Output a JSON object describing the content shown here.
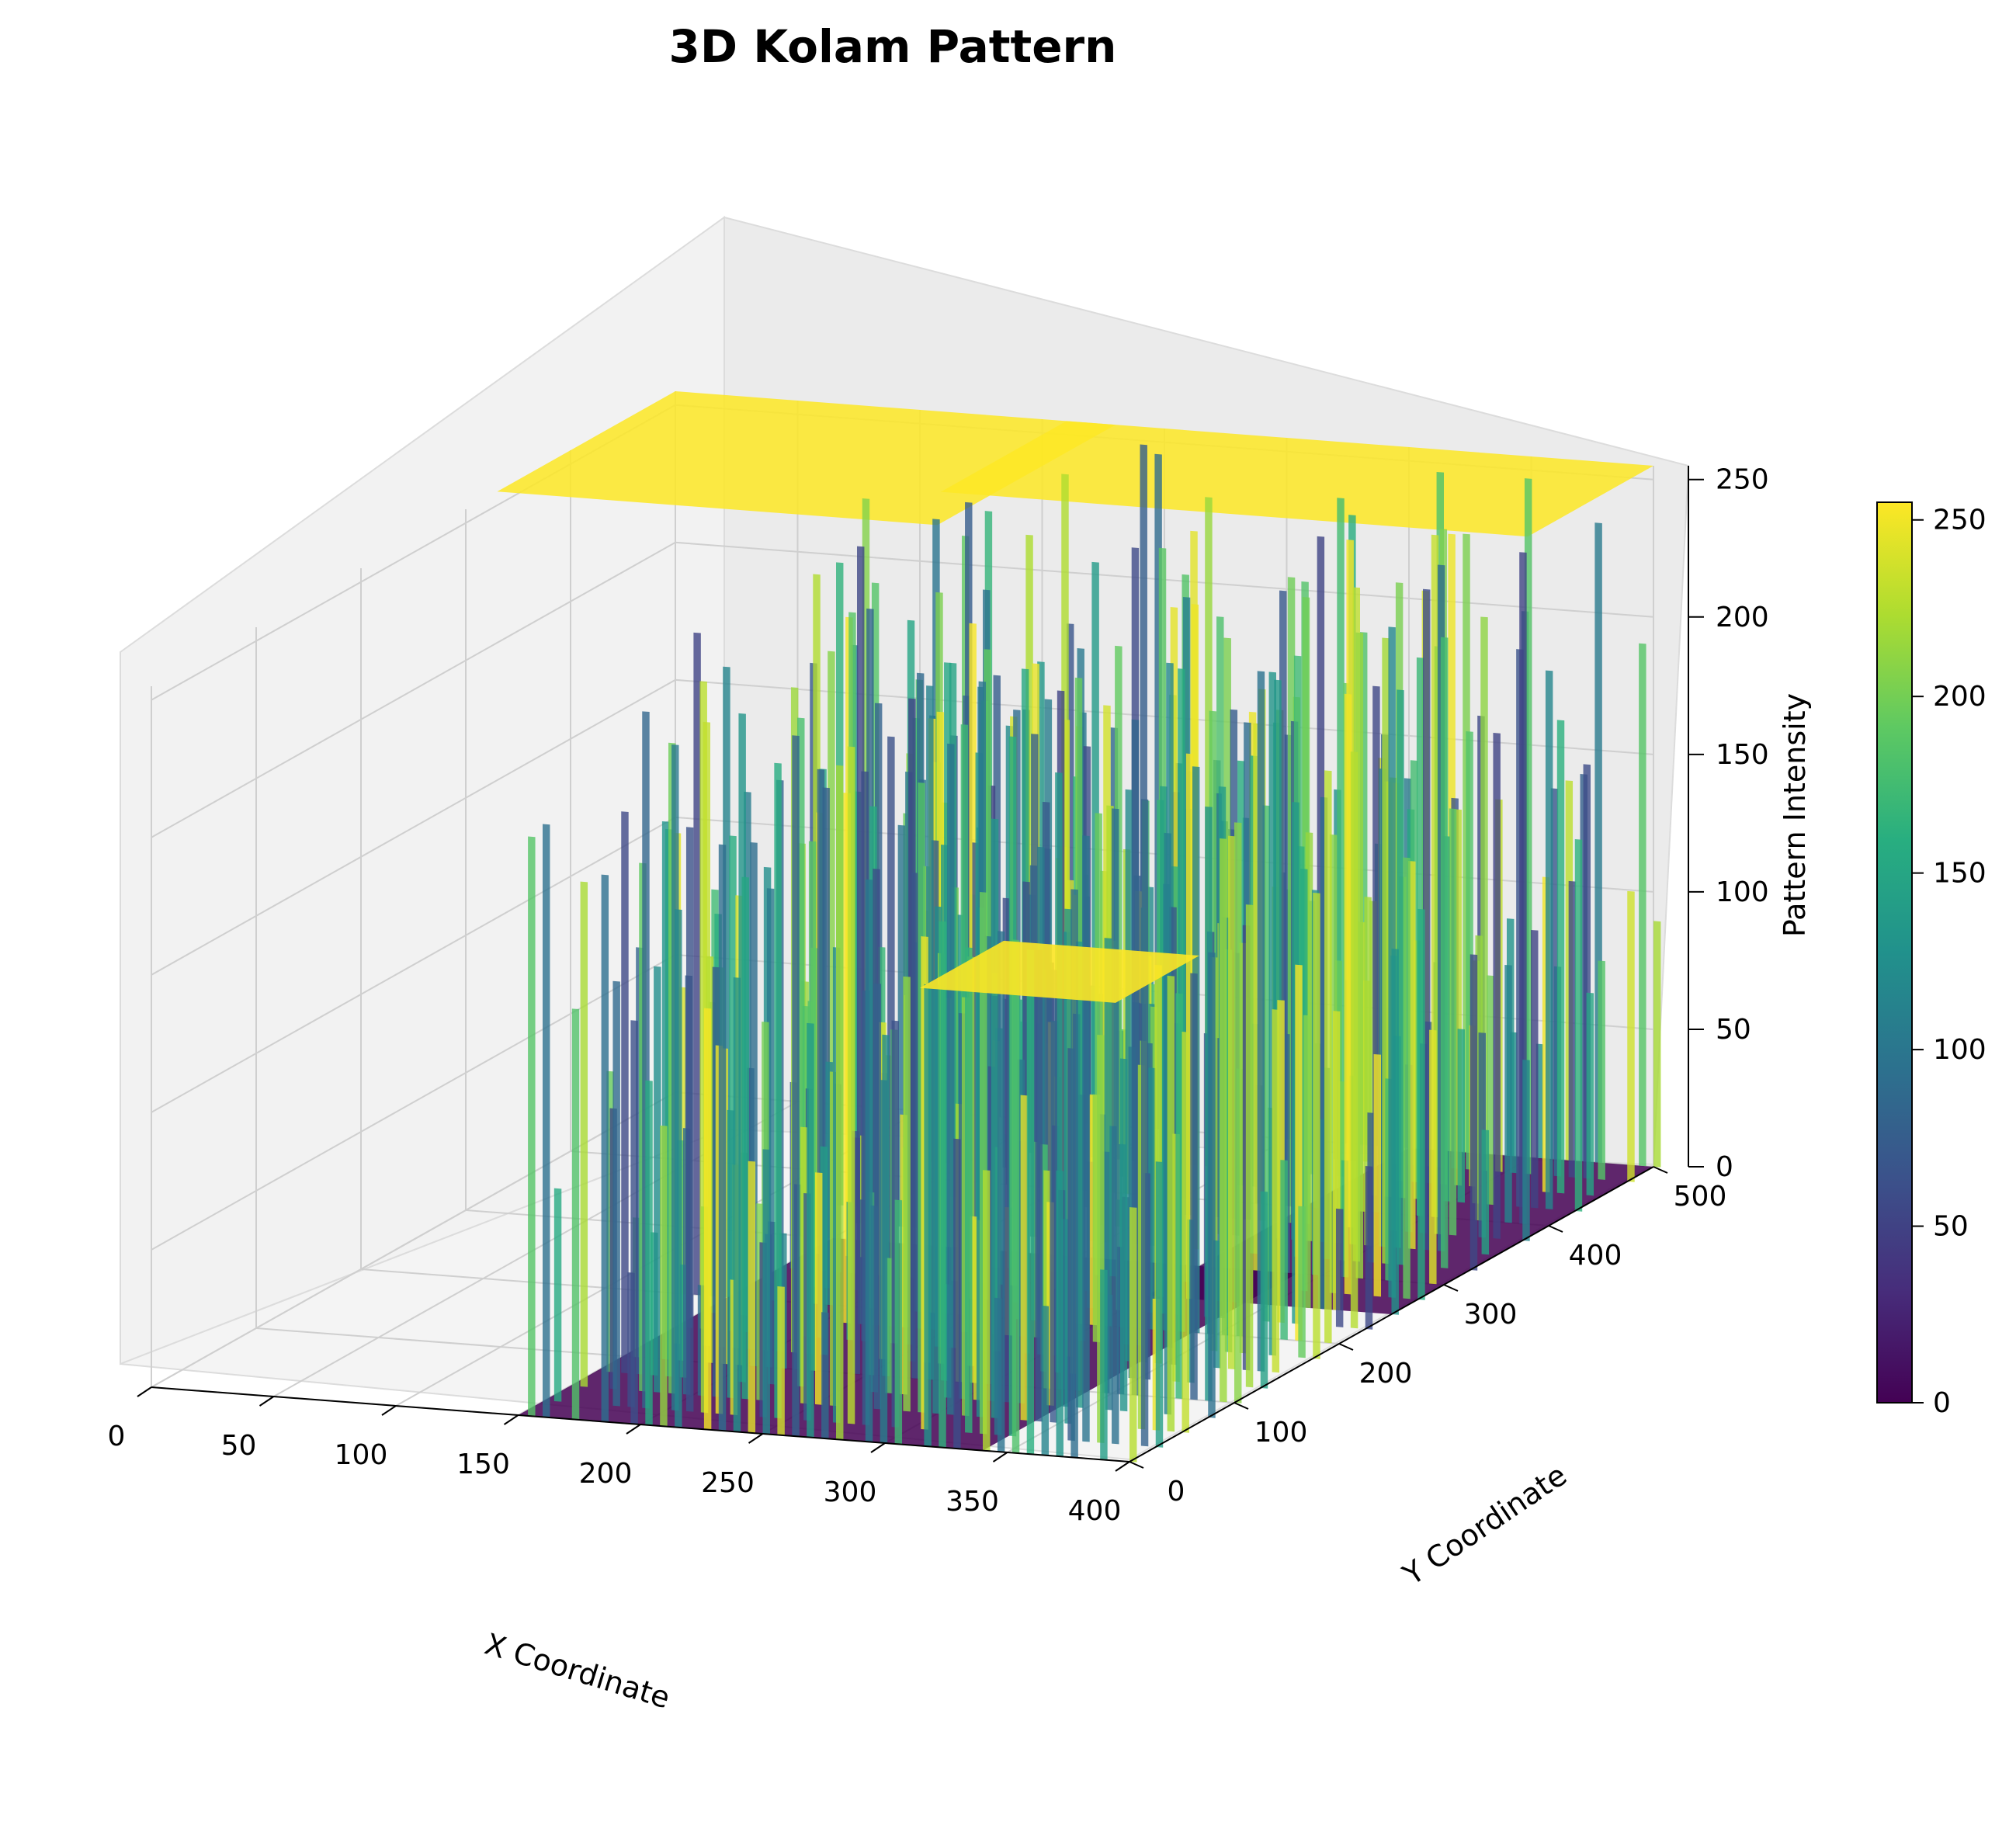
{
  "chart_data": {
    "type": "surface",
    "title": "3D Kolam Pattern",
    "xlabel": "X Coordinate",
    "ylabel": "Y Coordinate",
    "zlabel": "Pattern Intensity",
    "x_ticks": [
      "0",
      "50",
      "100",
      "150",
      "200",
      "250",
      "300",
      "350",
      "400"
    ],
    "y_ticks": [
      "0",
      "100",
      "200",
      "300",
      "400",
      "500"
    ],
    "z_ticks": [
      "0",
      "50",
      "100",
      "150",
      "200",
      "250"
    ],
    "colorbar_ticks": [
      "0",
      "50",
      "100",
      "150",
      "200",
      "250"
    ],
    "xlim": [
      0,
      400
    ],
    "ylim": [
      0,
      500
    ],
    "zlim": [
      0,
      255
    ],
    "colormap": "viridis",
    "colorbar_range": [
      0,
      255
    ],
    "grid": true,
    "colorbar_position": "right",
    "description_regions": [
      {
        "x": [
          0,
          180
        ],
        "y": [
          320,
          500
        ],
        "z": 255
      },
      {
        "x": [
          130,
          400
        ],
        "y": [
          0,
          500
        ],
        "z_range": [
          0,
          255
        ]
      },
      {
        "x": [
          150,
          340
        ],
        "y": [
          0,
          300
        ],
        "z": 0
      }
    ]
  }
}
